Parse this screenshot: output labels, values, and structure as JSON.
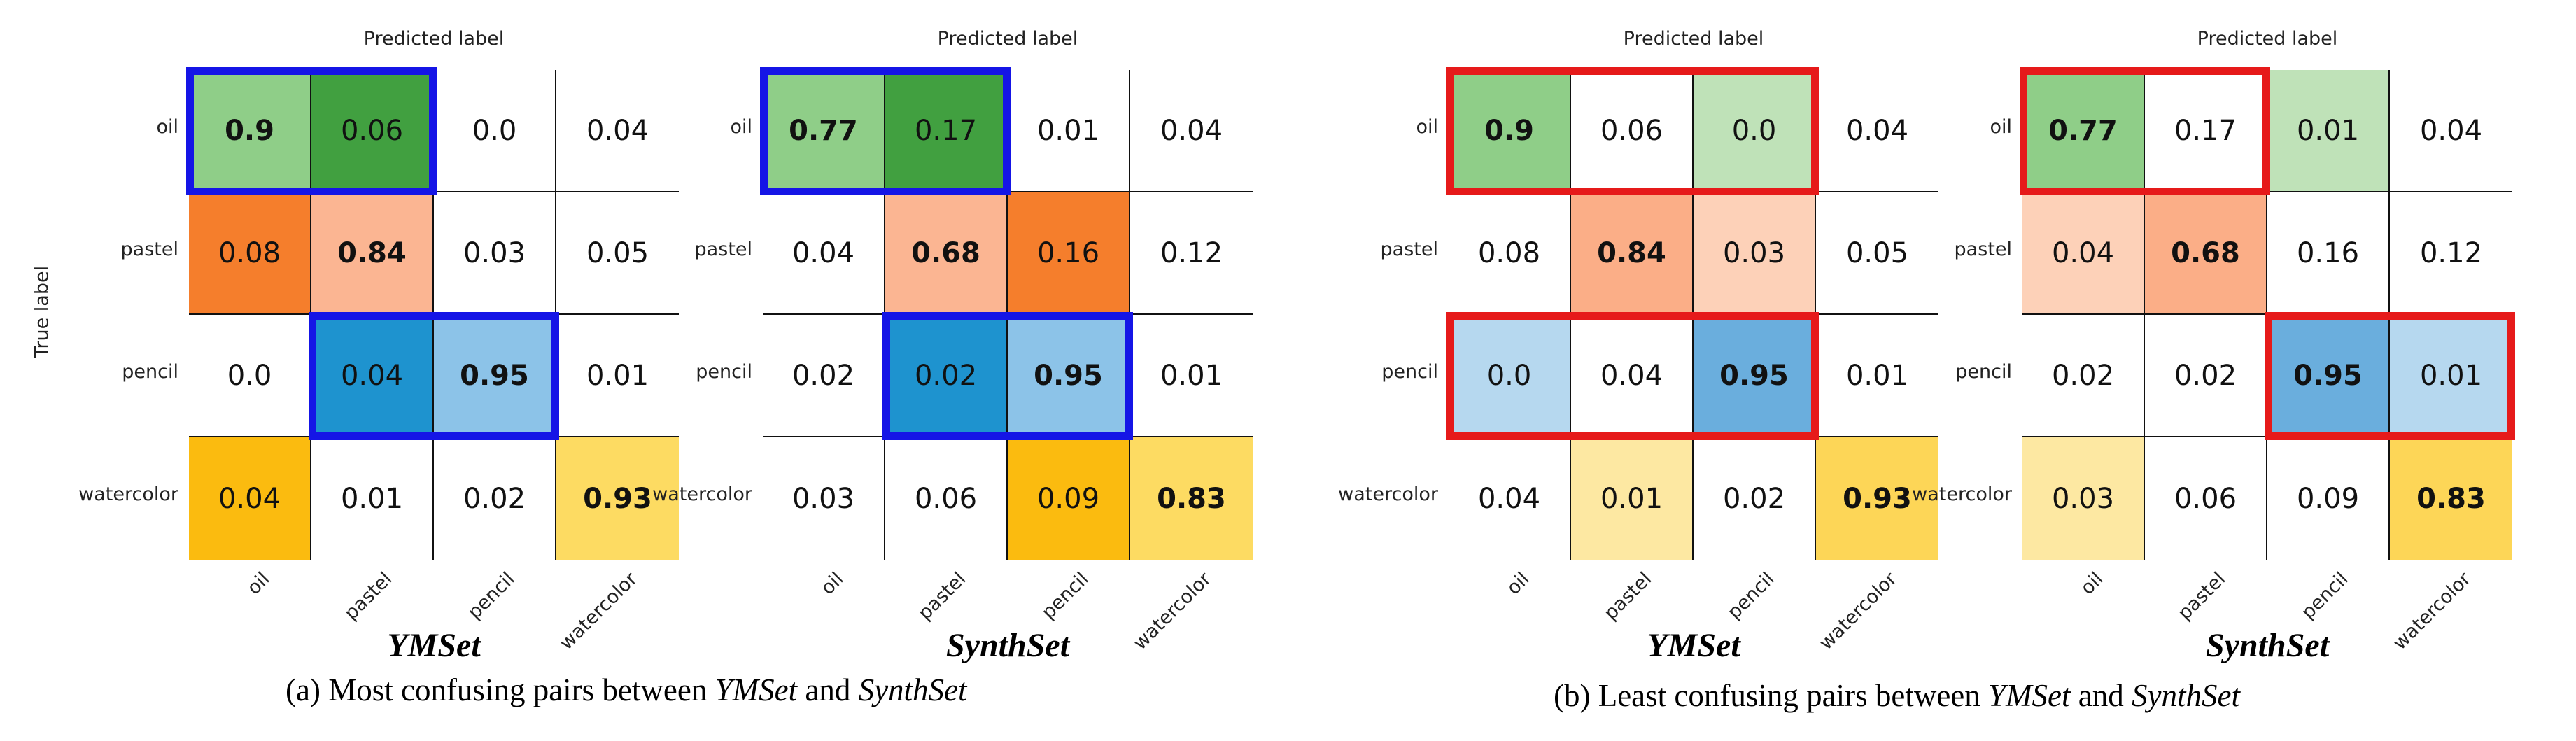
{
  "chart_data": [
    {
      "type": "heatmap",
      "panel": "a",
      "title": "YMSet",
      "xlabel": "Predicted label",
      "ylabel": "True label",
      "rows": [
        "oil",
        "pastel",
        "pencil",
        "watercolor"
      ],
      "cols": [
        "oil",
        "pastel",
        "pencil",
        "watercolor"
      ],
      "values": [
        [
          0.9,
          0.06,
          0.0,
          0.04
        ],
        [
          0.08,
          0.84,
          0.03,
          0.05
        ],
        [
          0.0,
          0.04,
          0.95,
          0.01
        ],
        [
          0.04,
          0.01,
          0.02,
          0.93
        ]
      ],
      "display": [
        [
          "0.9",
          "0.06",
          "0.0",
          "0.04"
        ],
        [
          "0.08",
          "0.84",
          "0.03",
          "0.05"
        ],
        [
          "0.0",
          "0.04",
          "0.95",
          "0.01"
        ],
        [
          "0.04",
          "0.01",
          "0.02",
          "0.93"
        ]
      ],
      "colors": [
        [
          "#8fce88",
          "#41a040",
          "#ffffff",
          "#ffffff"
        ],
        [
          "#f57e2c",
          "#fbb592",
          "#ffffff",
          "#ffffff"
        ],
        [
          "#ffffff",
          "#1e93cf",
          "#8cc3e8",
          "#ffffff"
        ],
        [
          "#fbbb0f",
          "#ffffff",
          "#ffffff",
          "#fddb62"
        ]
      ],
      "highlights": [
        {
          "row": 0,
          "col_start": 0,
          "col_end": 1
        },
        {
          "row": 2,
          "col_start": 1,
          "col_end": 2
        }
      ],
      "highlight_color": "#1515e6"
    },
    {
      "type": "heatmap",
      "panel": "a",
      "title": "SynthSet",
      "xlabel": "Predicted label",
      "rows": [
        "oil",
        "pastel",
        "pencil",
        "watercolor"
      ],
      "cols": [
        "oil",
        "pastel",
        "pencil",
        "watercolor"
      ],
      "values": [
        [
          0.77,
          0.17,
          0.01,
          0.04
        ],
        [
          0.04,
          0.68,
          0.16,
          0.12
        ],
        [
          0.02,
          0.02,
          0.95,
          0.01
        ],
        [
          0.03,
          0.06,
          0.09,
          0.83
        ]
      ],
      "display": [
        [
          "0.77",
          "0.17",
          "0.01",
          "0.04"
        ],
        [
          "0.04",
          "0.68",
          "0.16",
          "0.12"
        ],
        [
          "0.02",
          "0.02",
          "0.95",
          "0.01"
        ],
        [
          "0.03",
          "0.06",
          "0.09",
          "0.83"
        ]
      ],
      "colors": [
        [
          "#8fce88",
          "#41a040",
          "#ffffff",
          "#ffffff"
        ],
        [
          "#ffffff",
          "#fbb592",
          "#f57e2c",
          "#ffffff"
        ],
        [
          "#ffffff",
          "#1e93cf",
          "#8cc3e8",
          "#ffffff"
        ],
        [
          "#ffffff",
          "#ffffff",
          "#fbbb0f",
          "#fddb62"
        ]
      ],
      "highlights": [
        {
          "row": 0,
          "col_start": 0,
          "col_end": 1
        },
        {
          "row": 2,
          "col_start": 1,
          "col_end": 2
        }
      ],
      "highlight_color": "#1515e6"
    },
    {
      "type": "heatmap",
      "panel": "b",
      "title": "YMSet",
      "xlabel": "Predicted label",
      "rows": [
        "oil",
        "pastel",
        "pencil",
        "watercolor"
      ],
      "cols": [
        "oil",
        "pastel",
        "pencil",
        "watercolor"
      ],
      "values": [
        [
          0.9,
          0.06,
          0.0,
          0.04
        ],
        [
          0.08,
          0.84,
          0.03,
          0.05
        ],
        [
          0.0,
          0.04,
          0.95,
          0.01
        ],
        [
          0.04,
          0.01,
          0.02,
          0.93
        ]
      ],
      "display": [
        [
          "0.9",
          "0.06",
          "0.0",
          "0.04"
        ],
        [
          "0.08",
          "0.84",
          "0.03",
          "0.05"
        ],
        [
          "0.0",
          "0.04",
          "0.95",
          "0.01"
        ],
        [
          "0.04",
          "0.01",
          "0.02",
          "0.93"
        ]
      ],
      "colors": [
        [
          "#8fce88",
          "#ffffff",
          "#bfe2b8",
          "#ffffff"
        ],
        [
          "#ffffff",
          "#fbae87",
          "#fdd1b8",
          "#ffffff"
        ],
        [
          "#b6d8ef",
          "#ffffff",
          "#6aaedd",
          "#ffffff"
        ],
        [
          "#ffffff",
          "#fde8a2",
          "#ffffff",
          "#fdd657"
        ]
      ],
      "highlights": [
        {
          "row": 0,
          "col_start": 0,
          "col_end": 2
        },
        {
          "row": 2,
          "col_start": 0,
          "col_end": 2
        }
      ],
      "highlight_color": "#e61a1a"
    },
    {
      "type": "heatmap",
      "panel": "b",
      "title": "SynthSet",
      "xlabel": "Predicted label",
      "rows": [
        "oil",
        "pastel",
        "pencil",
        "watercolor"
      ],
      "cols": [
        "oil",
        "pastel",
        "pencil",
        "watercolor"
      ],
      "values": [
        [
          0.77,
          0.17,
          0.01,
          0.04
        ],
        [
          0.04,
          0.68,
          0.16,
          0.12
        ],
        [
          0.02,
          0.02,
          0.95,
          0.01
        ],
        [
          0.03,
          0.06,
          0.09,
          0.83
        ]
      ],
      "display": [
        [
          "0.77",
          "0.17",
          "0.01",
          "0.04"
        ],
        [
          "0.04",
          "0.68",
          "0.16",
          "0.12"
        ],
        [
          "0.02",
          "0.02",
          "0.95",
          "0.01"
        ],
        [
          "0.03",
          "0.06",
          "0.09",
          "0.83"
        ]
      ],
      "colors": [
        [
          "#8fce88",
          "#ffffff",
          "#bfe2b8",
          "#ffffff"
        ],
        [
          "#fdd1b8",
          "#fbae87",
          "#ffffff",
          "#ffffff"
        ],
        [
          "#ffffff",
          "#ffffff",
          "#6aaedd",
          "#b6d8ef"
        ],
        [
          "#fde8a2",
          "#ffffff",
          "#ffffff",
          "#fdd657"
        ]
      ],
      "highlights": [
        {
          "row": 0,
          "col_start": 0,
          "col_end": 1
        },
        {
          "row": 2,
          "col_start": 2,
          "col_end": 3
        }
      ],
      "highlight_color": "#e61a1a"
    }
  ],
  "captions": {
    "a": {
      "prefix": "(a) Most confusing pairs between ",
      "set1": "YMSet",
      "mid": " and ",
      "set2": "SynthSet"
    },
    "b": {
      "prefix": "(b) Least confusing pairs between ",
      "set1": "YMSet",
      "mid": " and ",
      "set2": "SynthSet"
    }
  }
}
